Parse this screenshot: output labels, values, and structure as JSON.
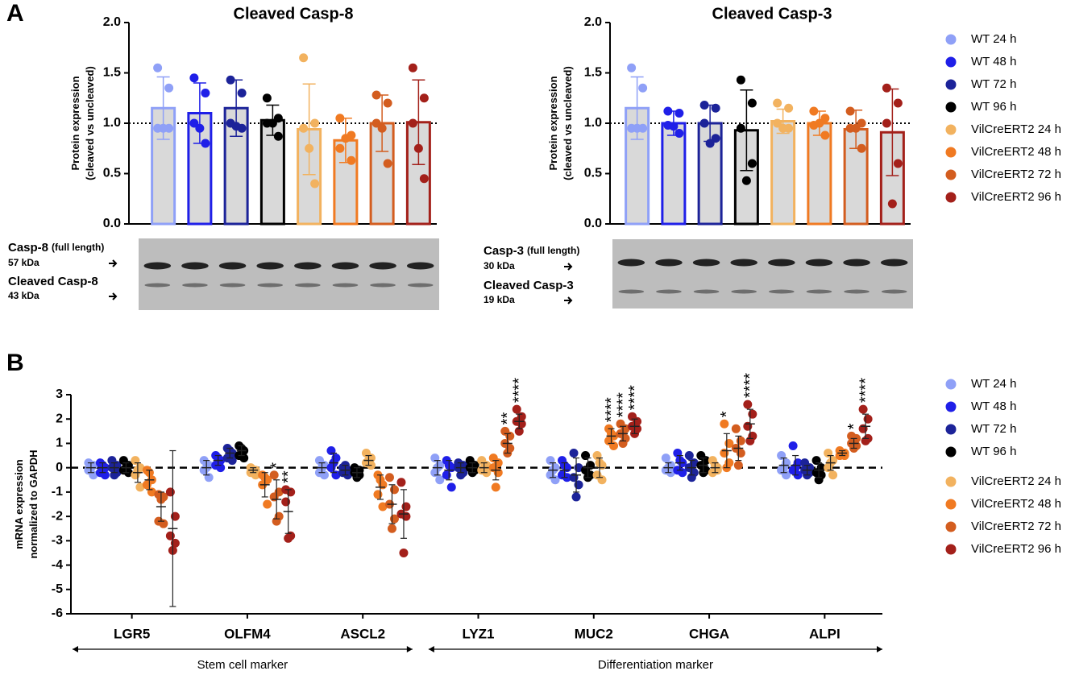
{
  "panels": [
    "A",
    "B"
  ],
  "blots": [
    {
      "full": "Casp-8",
      "full_note": "(full length)",
      "full_kda": "57 kDa",
      "cleaved": "Cleaved Casp-8",
      "cleaved_kda": "43 kDa"
    },
    {
      "full": "Casp-3",
      "full_note": "(full length)",
      "full_kda": "30 kDa",
      "cleaved": "Cleaved Casp-3",
      "cleaved_kda": "19 kDa"
    }
  ],
  "chart_data": [
    {
      "type": "bar",
      "title": "Cleaved Casp-8",
      "y_label": [
        "Protein expression",
        "(cleaved vs uncleaved)"
      ],
      "ylim": [
        0,
        2
      ],
      "yticks": [
        {
          "value": 0,
          "label": "0.0"
        },
        0.5,
        {
          "value": 1,
          "label": "1.0"
        },
        1.5,
        {
          "value": 2,
          "label": "2.0"
        }
      ],
      "reference_line": 1,
      "legend": "right",
      "series": [
        {
          "name": "WT 24 h",
          "color": "#8fa0f7",
          "mean": 1.15,
          "sd": 0.31,
          "values": [
            1.55,
            1.35,
            0.95,
            0.95,
            0.95
          ]
        },
        {
          "name": "WT 48 h",
          "color": "#1f1fe8",
          "mean": 1.1,
          "sd": 0.3,
          "values": [
            1.45,
            1.3,
            1.0,
            0.8,
            0.95
          ]
        },
        {
          "name": "WT 72 h",
          "color": "#1c2399",
          "mean": 1.15,
          "sd": 0.28,
          "values": [
            1.43,
            1.3,
            1.0,
            0.95,
            0.97
          ]
        },
        {
          "name": "WT 96 h",
          "color": "#000000",
          "mean": 1.03,
          "sd": 0.15,
          "values": [
            1.25,
            1.05,
            1.0,
            0.87,
            1.0
          ]
        },
        {
          "name": "VilCreERT2 24 h",
          "color": "#f2b25f",
          "mean": 0.94,
          "sd": 0.45,
          "values": [
            1.65,
            1.0,
            0.95,
            0.4,
            0.75
          ]
        },
        {
          "name": "VilCreERT2 48 h",
          "color": "#f07a22",
          "mean": 0.83,
          "sd": 0.22,
          "values": [
            1.05,
            0.88,
            0.75,
            0.63,
            0.85
          ]
        },
        {
          "name": "VilCreERT2 72 h",
          "color": "#d35d1f",
          "mean": 1.0,
          "sd": 0.28,
          "values": [
            1.28,
            1.2,
            1.0,
            0.6,
            0.95
          ]
        },
        {
          "name": "VilCreERT2 96 h",
          "color": "#a3201a",
          "mean": 1.01,
          "sd": 0.42,
          "values": [
            1.55,
            1.25,
            1.0,
            0.45,
            0.75
          ]
        }
      ]
    },
    {
      "type": "bar",
      "title": "Cleaved Casp-3",
      "y_label": [
        "Protein expression",
        "(cleaved vs uncleaved)"
      ],
      "ylim": [
        0,
        2
      ],
      "yticks": [
        {
          "value": 0,
          "label": "0.0"
        },
        0.5,
        {
          "value": 1,
          "label": "1.0"
        },
        1.5,
        {
          "value": 2,
          "label": "2.0"
        }
      ],
      "reference_line": 1,
      "series": [
        {
          "color": "#8fa0f7",
          "mean": 1.15,
          "sd": 0.31,
          "values": [
            1.55,
            1.35,
            0.95,
            0.95,
            0.95
          ]
        },
        {
          "color": "#1f1fe8",
          "mean": 1.0,
          "sd": 0.12,
          "values": [
            1.12,
            1.1,
            0.98,
            0.9,
            0.97
          ]
        },
        {
          "color": "#1c2399",
          "mean": 1.0,
          "sd": 0.18,
          "values": [
            1.18,
            1.15,
            1.0,
            0.85,
            0.8
          ]
        },
        {
          "color": "#000000",
          "mean": 0.93,
          "sd": 0.4,
          "values": [
            1.43,
            1.2,
            0.95,
            0.6,
            0.43
          ]
        },
        {
          "color": "#f2b25f",
          "mean": 1.02,
          "sd": 0.12,
          "values": [
            1.2,
            1.15,
            1.0,
            0.95,
            0.95
          ]
        },
        {
          "color": "#f07a22",
          "mean": 1.0,
          "sd": 0.12,
          "values": [
            1.12,
            1.05,
            0.98,
            0.88,
            1.0
          ]
        },
        {
          "color": "#d35d1f",
          "mean": 0.94,
          "sd": 0.19,
          "values": [
            1.12,
            1.0,
            0.95,
            0.75,
            0.95
          ]
        },
        {
          "color": "#a3201a",
          "mean": 0.91,
          "sd": 0.43,
          "values": [
            1.35,
            1.2,
            1.0,
            0.6,
            0.2
          ]
        }
      ]
    },
    {
      "type": "dot",
      "y_label": [
        "mRNA expression",
        "normalized to GAPDH"
      ],
      "categories": [
        "LGR5",
        "OLFM4",
        "ASCL2",
        "LYZ1",
        "MUC2",
        "CHGA",
        "ALPI"
      ],
      "category_groups": [
        "Stem cell marker",
        "Differentiation marker"
      ],
      "ylim": [
        -6,
        3
      ],
      "yticks": [
        -6,
        -5,
        -4,
        -3,
        -2,
        -1,
        0,
        1,
        2,
        3
      ],
      "reference_line": 0,
      "legend": "right",
      "series": [
        {
          "name": "WT 24 h",
          "color": "#8fa0f7",
          "mean": [
            0,
            0,
            0,
            0,
            -0.1,
            0,
            0.1
          ],
          "sd": [
            0.2,
            0.3,
            0.2,
            0.3,
            0.3,
            0.2,
            0.3
          ],
          "values": [
            [
              0.2,
              0.1,
              -0.1,
              -0.3,
              0.0
            ],
            [
              0.3,
              0.1,
              -0.1,
              -0.4,
              0.0
            ],
            [
              0.3,
              0.1,
              -0.2,
              -0.3,
              0.0
            ],
            [
              0.4,
              0.1,
              -0.2,
              -0.5,
              0.0
            ],
            [
              0.3,
              0.0,
              -0.3,
              -0.5,
              -0.1
            ],
            [
              0.4,
              0.1,
              -0.1,
              -0.2,
              0.0
            ],
            [
              0.5,
              0.2,
              -0.1,
              -0.3,
              0.0
            ]
          ],
          "stars": [
            null,
            null,
            null,
            null,
            null,
            null,
            null
          ]
        },
        {
          "name": "WT 48 h",
          "color": "#1f1fe8",
          "mean": [
            0,
            0.3,
            0.2,
            -0.1,
            -0.1,
            0.2,
            0.1
          ],
          "sd": [
            0.2,
            0.2,
            0.4,
            0.4,
            0.3,
            0.3,
            0.4
          ],
          "values": [
            [
              0.2,
              0.0,
              -0.2,
              -0.3,
              0.1
            ],
            [
              0.5,
              0.3,
              0.1,
              0.0,
              0.4
            ],
            [
              0.7,
              0.4,
              0.0,
              -0.3,
              0.2
            ],
            [
              0.3,
              0.0,
              -0.3,
              -0.8,
              0.1
            ],
            [
              0.3,
              0.0,
              -0.3,
              -0.4,
              0.1
            ],
            [
              0.6,
              0.2,
              -0.1,
              -0.2,
              0.3
            ],
            [
              0.9,
              0.2,
              -0.1,
              -0.3,
              0.0
            ]
          ],
          "stars": [
            null,
            null,
            null,
            null,
            null,
            null,
            null
          ]
        },
        {
          "name": "WT 72 h",
          "color": "#1c2399",
          "mean": [
            0,
            0.6,
            -0.1,
            0,
            -0.3,
            0,
            -0.1
          ],
          "sd": [
            0.2,
            0.2,
            0.2,
            0.2,
            0.7,
            0.3,
            0.2
          ],
          "values": [
            [
              0.3,
              0.1,
              0.0,
              -0.2,
              -0.3
            ],
            [
              0.8,
              0.6,
              0.4,
              0.3,
              0.7
            ],
            [
              0.0,
              -0.1,
              -0.2,
              -0.3,
              0.1
            ],
            [
              0.2,
              0.1,
              0.0,
              -0.2,
              -0.3
            ],
            [
              0.6,
              0.0,
              -0.4,
              -0.7,
              -1.2
            ],
            [
              0.5,
              0.2,
              0.0,
              -0.2,
              -0.4
            ],
            [
              0.2,
              0.0,
              -0.1,
              -0.2,
              -0.3
            ]
          ],
          "stars": [
            null,
            null,
            null,
            null,
            null,
            null,
            null
          ]
        },
        {
          "name": "WT 96 h",
          "color": "#000000",
          "mean": [
            0,
            0.7,
            -0.2,
            0,
            0,
            0.1,
            -0.1
          ],
          "sd": [
            0.2,
            0.2,
            0.2,
            0.2,
            0.4,
            0.3,
            0.3
          ],
          "values": [
            [
              0.3,
              0.1,
              -0.1,
              -0.2,
              0.0
            ],
            [
              0.9,
              0.7,
              0.5,
              0.4,
              0.8
            ],
            [
              0.0,
              -0.1,
              -0.2,
              -0.3,
              -0.4
            ],
            [
              0.3,
              0.1,
              0.0,
              -0.1,
              -0.2
            ],
            [
              0.5,
              0.1,
              -0.1,
              -0.3,
              -0.4
            ],
            [
              0.5,
              0.3,
              0.1,
              -0.1,
              -0.2
            ],
            [
              0.3,
              0.0,
              -0.2,
              -0.3,
              -0.5
            ]
          ],
          "stars": [
            null,
            null,
            null,
            null,
            null,
            null,
            null
          ]
        },
        {
          "name": "VilCreERT2 24 h",
          "color": "#f2b25f",
          "mean": [
            -0.2,
            -0.1,
            0.3,
            0,
            0,
            0,
            0.2
          ],
          "sd": [
            0.4,
            0.1,
            0.2,
            0.2,
            0.4,
            0.2,
            0.3
          ],
          "values": [
            [
              0.3,
              0.0,
              -0.3,
              -0.8,
              -0.1
            ],
            [
              0.0,
              -0.1,
              -0.2,
              -0.3,
              -0.1
            ],
            [
              0.6,
              0.4,
              0.2,
              0.1,
              0.3
            ],
            [
              0.3,
              0.1,
              -0.1,
              -0.2,
              0.0
            ],
            [
              0.5,
              0.1,
              -0.3,
              -0.5,
              0.2
            ],
            [
              0.3,
              0.0,
              -0.2,
              -0.1,
              0.1
            ],
            [
              0.6,
              0.3,
              0.0,
              -0.3,
              0.2
            ]
          ],
          "stars": [
            null,
            null,
            null,
            null,
            null,
            null,
            null
          ]
        },
        {
          "name": "VilCreERT2 48 h",
          "color": "#f07a22",
          "mean": [
            -0.5,
            -0.7,
            -0.8,
            -0.1,
            1.3,
            0.7,
            0.6
          ],
          "sd": [
            0.4,
            0.5,
            0.5,
            0.4,
            0.3,
            0.7,
            0.1
          ],
          "values": [
            [
              -0.1,
              -0.5,
              -0.7,
              -1.0,
              -0.2
            ],
            [
              -0.3,
              -0.5,
              -0.7,
              -1.5,
              -0.4
            ],
            [
              -0.3,
              -0.7,
              -1.1,
              -1.6,
              -0.5
            ],
            [
              0.4,
              0.2,
              0.0,
              -0.2,
              -0.8
            ],
            [
              1.6,
              1.3,
              1.1,
              0.9,
              1.4
            ],
            [
              1.8,
              1.0,
              0.6,
              0.2,
              0.0
            ],
            [
              0.7,
              0.6,
              0.5,
              0.5,
              0.6
            ]
          ],
          "stars": [
            null,
            null,
            null,
            null,
            "****",
            "*",
            null
          ]
        },
        {
          "name": "VilCreERT2 72 h",
          "color": "#d35d1f",
          "mean": [
            -1.6,
            -1.3,
            -1.5,
            1.0,
            1.4,
            0.8,
            1.0
          ],
          "sd": [
            0.6,
            0.8,
            0.8,
            0.4,
            0.3,
            0.5,
            0.2
          ],
          "values": [
            [
              -1.1,
              -1.2,
              -2.2,
              -2.3,
              -1.3
            ],
            [
              -0.3,
              -1.0,
              -1.2,
              -2.0,
              -2.2
            ],
            [
              -0.4,
              -0.9,
              -1.5,
              -2.1,
              -2.5
            ],
            [
              1.5,
              1.3,
              1.0,
              0.8,
              0.6
            ],
            [
              1.8,
              1.6,
              1.4,
              1.2,
              1.0
            ],
            [
              1.6,
              1.1,
              0.8,
              0.6,
              0.1
            ],
            [
              1.3,
              1.2,
              1.0,
              0.9,
              0.8
            ]
          ],
          "stars": [
            null,
            "*",
            null,
            "**",
            "****",
            null,
            "*"
          ]
        },
        {
          "name": "VilCreERT2 96 h",
          "color": "#a3201a",
          "mean": [
            -2.5,
            -1.8,
            -1.9,
            1.9,
            1.7,
            1.8,
            1.7
          ],
          "sd": [
            3.2,
            0.9,
            1.0,
            0.3,
            0.3,
            0.6,
            0.5
          ],
          "values": [
            [
              -1.0,
              -2.0,
              -2.8,
              -3.1,
              -3.4
            ],
            [
              -0.9,
              -1.0,
              -1.4,
              -2.8,
              -2.9
            ],
            [
              -0.6,
              -1.6,
              -1.9,
              -2.0,
              -3.5
            ],
            [
              2.4,
              2.1,
              1.9,
              1.8,
              1.5
            ],
            [
              2.1,
              1.9,
              1.7,
              1.6,
              1.4
            ],
            [
              2.6,
              2.2,
              1.7,
              1.3,
              1.1
            ],
            [
              2.4,
              2.0,
              1.6,
              1.2,
              1.1
            ]
          ],
          "stars": [
            null,
            "**",
            null,
            "****",
            "****",
            "****",
            "****"
          ]
        }
      ]
    }
  ]
}
